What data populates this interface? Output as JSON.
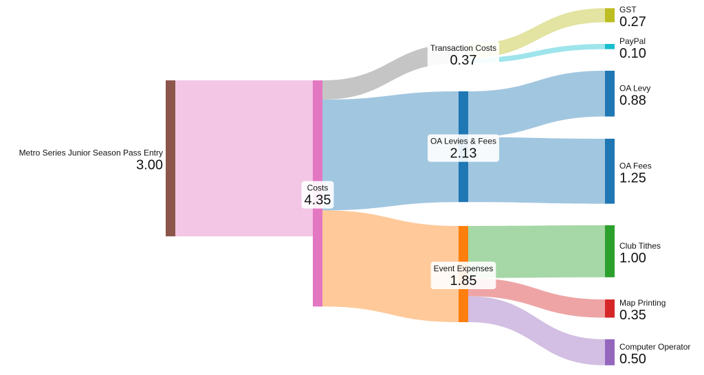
{
  "chart_data": {
    "type": "sankey",
    "nodes": [
      {
        "name": "Metro Series Junior Season Pass Entry",
        "value": 3.0,
        "value_label": "3.00",
        "color": "#8c564b"
      },
      {
        "name": "Costs",
        "value": 4.35,
        "value_label": "4.35",
        "color": "#e377c2"
      },
      {
        "name": "Transaction Costs",
        "value": 0.37,
        "value_label": "0.37",
        "color": "#7f7f7f"
      },
      {
        "name": "OA Levies & Fees",
        "value": 2.13,
        "value_label": "2.13",
        "color": "#1f77b4"
      },
      {
        "name": "Event Expenses",
        "value": 1.85,
        "value_label": "1.85",
        "color": "#ff7f0e"
      },
      {
        "name": "GST",
        "value": 0.27,
        "value_label": "0.27",
        "color": "#bcbd22"
      },
      {
        "name": "PayPal",
        "value": 0.1,
        "value_label": "0.10",
        "color": "#17becf"
      },
      {
        "name": "OA Levy",
        "value": 0.88,
        "value_label": "0.88",
        "color": "#1f77b4"
      },
      {
        "name": "OA Fees",
        "value": 1.25,
        "value_label": "1.25",
        "color": "#1f77b4"
      },
      {
        "name": "Club Tithes",
        "value": 1.0,
        "value_label": "1.00",
        "color": "#2ca02c"
      },
      {
        "name": "Map Printing",
        "value": 0.35,
        "value_label": "0.35",
        "color": "#d62728"
      },
      {
        "name": "Computer Operator",
        "value": 0.5,
        "value_label": "0.50",
        "color": "#9467bd"
      }
    ],
    "links": [
      {
        "source": 0,
        "target": 1,
        "value": 3.0
      },
      {
        "source": 1,
        "target": 2,
        "value": 0.37
      },
      {
        "source": 1,
        "target": 3,
        "value": 2.13
      },
      {
        "source": 1,
        "target": 4,
        "value": 1.85
      },
      {
        "source": 2,
        "target": 5,
        "value": 0.27
      },
      {
        "source": 2,
        "target": 6,
        "value": 0.1
      },
      {
        "source": 3,
        "target": 7,
        "value": 0.88
      },
      {
        "source": 3,
        "target": 8,
        "value": 1.25
      },
      {
        "source": 4,
        "target": 9,
        "value": 1.0
      },
      {
        "source": 4,
        "target": 10,
        "value": 0.35
      },
      {
        "source": 4,
        "target": 11,
        "value": 0.5
      }
    ]
  }
}
